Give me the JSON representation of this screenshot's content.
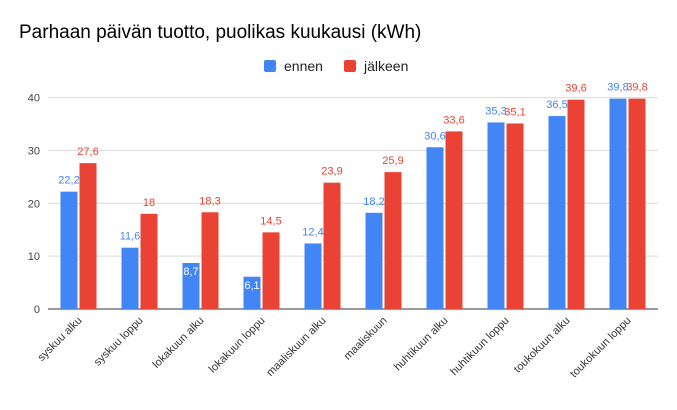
{
  "chart_data": {
    "type": "bar",
    "title": "Parhaan päivän tuotto, puolikas kuukausi (kWh)",
    "xlabel": "",
    "ylabel": "",
    "ylim": [
      0,
      42
    ],
    "yticks": [
      0,
      10,
      20,
      30,
      40
    ],
    "grid": true,
    "legend_position": "top",
    "categories": [
      "syskuu alku",
      "syskuu loppu",
      "lokakuun alku",
      "lokakuun loppu",
      "maaliskuun alku",
      "maaliskuun",
      "huhtikuun alku",
      "huhtikuun loppu",
      "toukokuun alku",
      "toukokuun loppu"
    ],
    "series": [
      {
        "name": "ennen",
        "color": "#4285f4",
        "label_color": "#4285f4",
        "values": [
          22.2,
          11.6,
          8.7,
          6.1,
          12.4,
          18.2,
          30.6,
          35.3,
          36.5,
          39.8
        ],
        "data_labels": [
          "22,2",
          "11,6",
          "8,7",
          "6,1",
          "12,4",
          "18,2",
          "30,6",
          "35,3",
          "36,5",
          "39,8"
        ]
      },
      {
        "name": "jälkeen",
        "color": "#ea4335",
        "label_color": "#ea4335",
        "values": [
          27.6,
          18,
          18.3,
          14.5,
          23.9,
          25.9,
          33.6,
          35.1,
          39.6,
          39.8
        ],
        "data_labels": [
          "27,6",
          "18",
          "18,3",
          "14,5",
          "23,9",
          "25,9",
          "33,6",
          "35,1",
          "39,6",
          "39,8"
        ]
      }
    ]
  }
}
